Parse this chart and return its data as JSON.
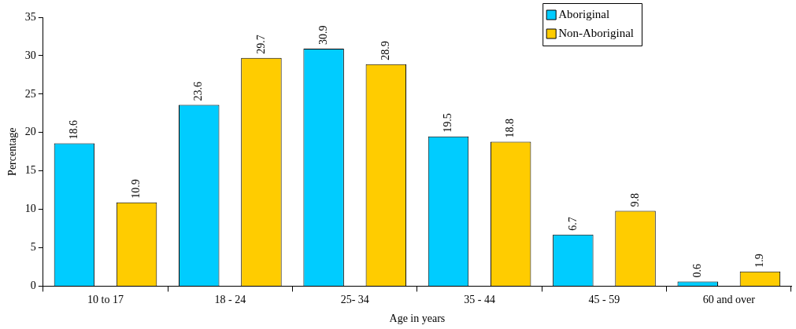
{
  "chart_data": {
    "type": "bar",
    "xlabel": "Age in years",
    "ylabel": "Percentage",
    "categories": [
      "10 to 17",
      "18 - 24",
      "25- 34",
      "35 - 44",
      "45 - 59",
      "60 and over"
    ],
    "series": [
      {
        "name": "Aboriginal",
        "color": "#00ccff",
        "values": [
          18.6,
          23.6,
          30.9,
          19.5,
          6.7,
          0.6
        ]
      },
      {
        "name": "Non-Aboriginal",
        "color": "#ffcc00",
        "values": [
          10.9,
          29.7,
          28.9,
          18.8,
          9.8,
          1.9
        ]
      }
    ],
    "ylim": [
      0,
      35
    ],
    "yticks": [
      0,
      5,
      10,
      15,
      20,
      25,
      30,
      35
    ],
    "grid": false,
    "legend": "top right",
    "data_labels": true
  }
}
